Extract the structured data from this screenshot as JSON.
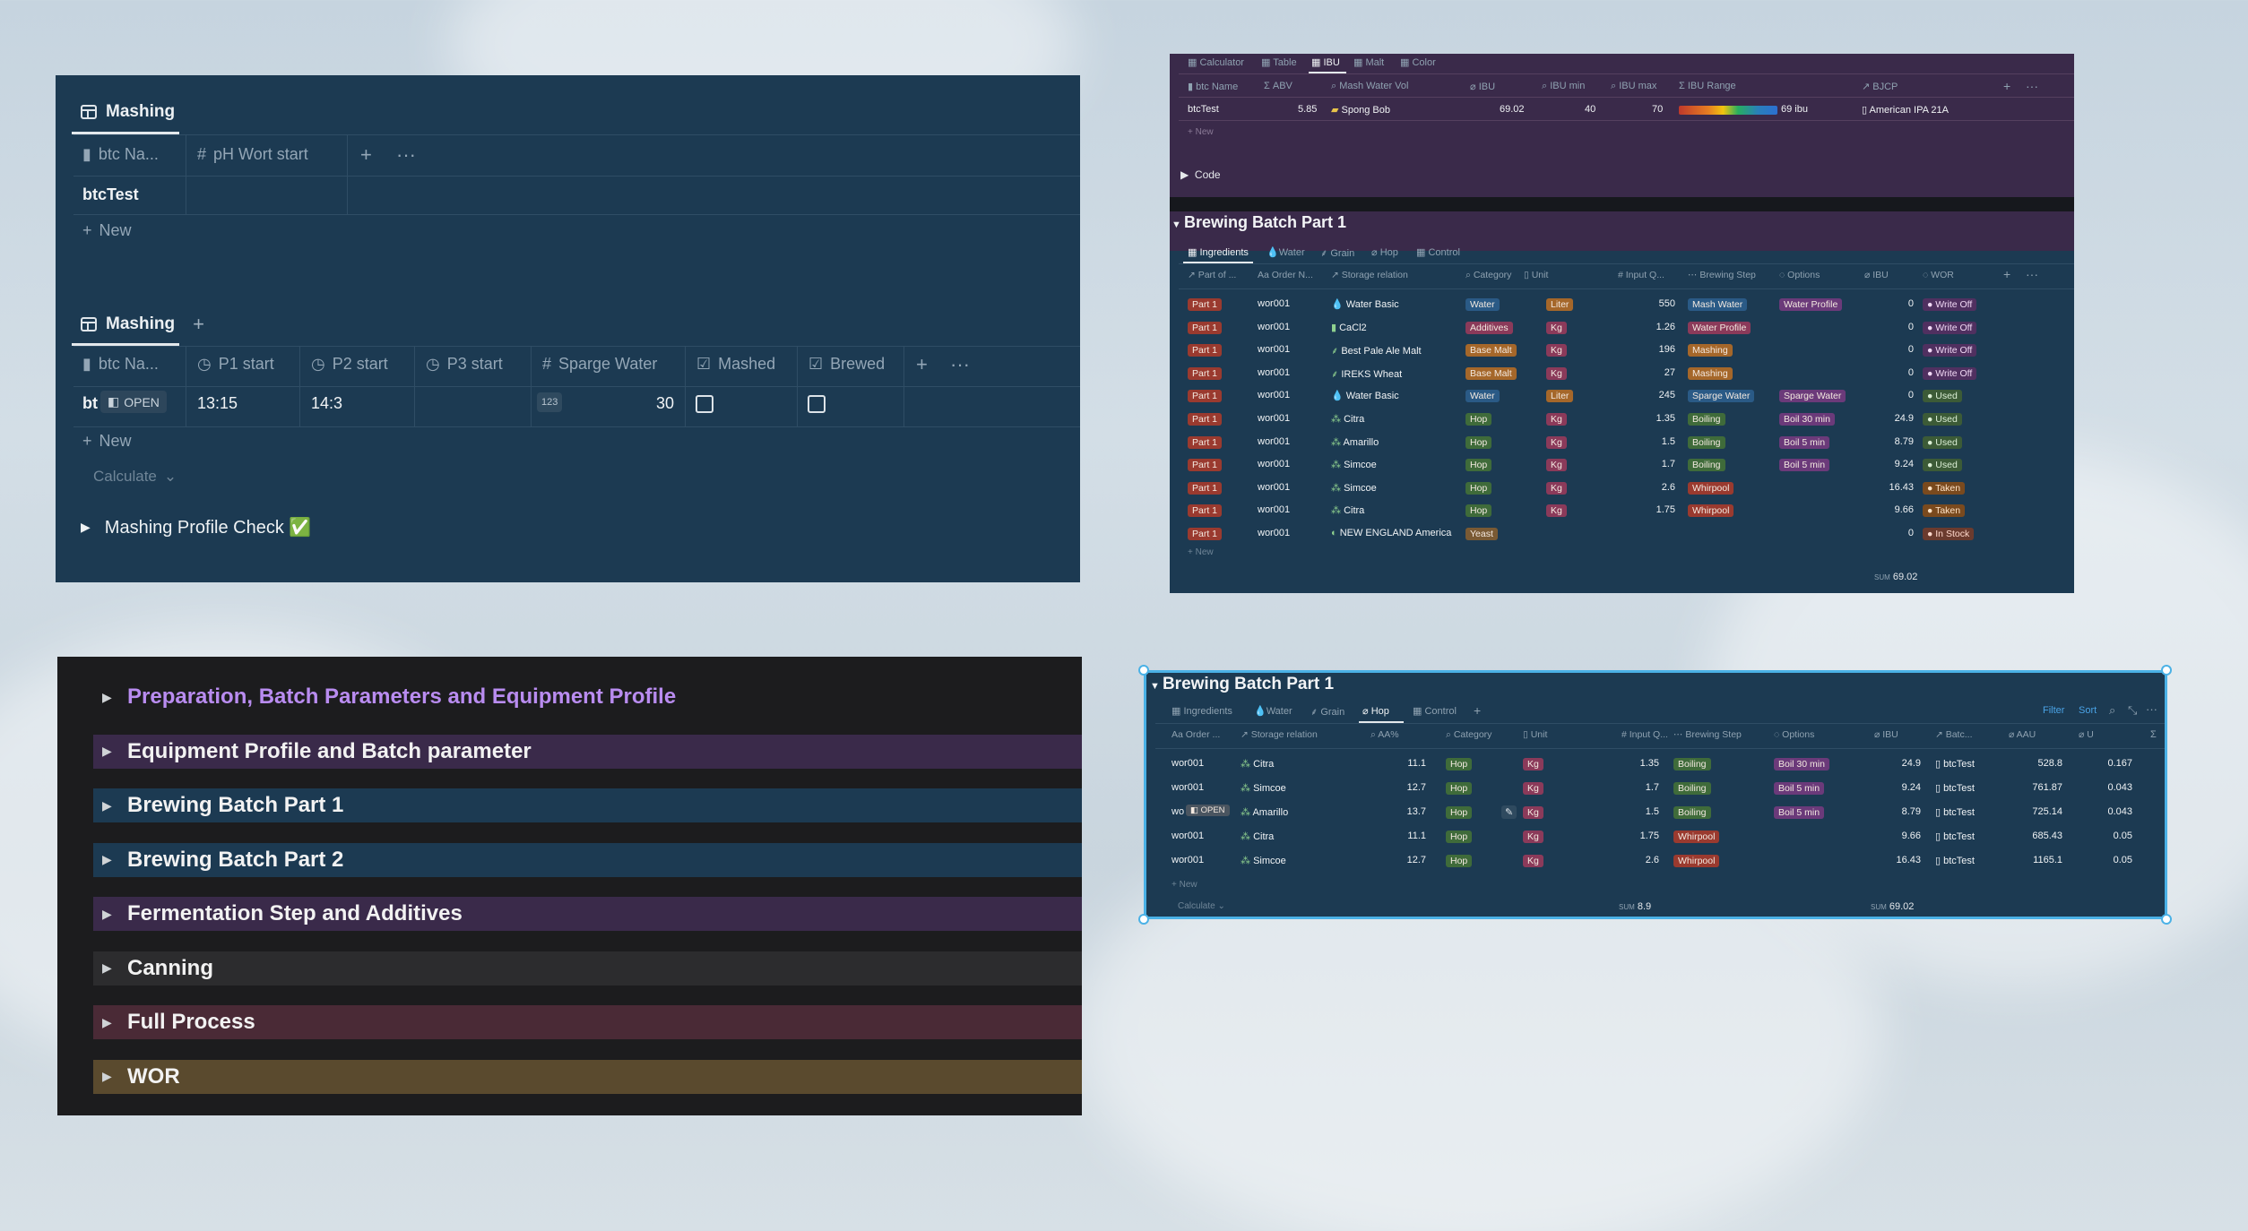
{
  "panel1": {
    "tab1": "Mashing",
    "table1_headers": [
      "btc Na...",
      "pH Wort start"
    ],
    "table1_rows": [
      [
        "btcTest",
        ""
      ]
    ],
    "new_label": "New",
    "tab2": "Mashing",
    "table2_headers": [
      "btc Na...",
      "P1 start",
      "P2 start",
      "P3 start",
      "Sparge Water",
      "Mashed",
      "Brewed"
    ],
    "row": {
      "name": "bt",
      "open": "OPEN",
      "p1": "13:15",
      "p2": "14:3",
      "p3": "",
      "sparge_badge": "123",
      "sparge": "30"
    },
    "new_label2": "New",
    "calculate": "Calculate",
    "toggle": "Mashing Profile Check ✅"
  },
  "panel2": {
    "tabs": [
      "Calculator",
      "Table",
      "IBU",
      "Malt",
      "Color"
    ],
    "active_tab": "IBU",
    "top_headers": [
      "btc Name",
      "ABV",
      "Mash Water Vol",
      "IBU",
      "IBU min",
      "IBU max",
      "IBU Range",
      "BJCP"
    ],
    "top_row": {
      "name": "btcTest",
      "abv": "5.85",
      "mash": "Spong Bob",
      "ibu": "69.02",
      "ibu_min": "40",
      "ibu_max": "70",
      "range_label": "69 ibu",
      "bjcp": "American IPA 21A"
    },
    "new_label": "New",
    "code_toggle": "Code",
    "title": "Brewing Batch Part 1",
    "sub_tabs": [
      "Ingredients",
      "Water",
      "Grain",
      "Hop",
      "Control"
    ],
    "headers": [
      "Part of ...",
      "Order N...",
      "Storage relation",
      "Category",
      "Unit",
      "Input Q...",
      "Brewing Step",
      "Options",
      "IBU",
      "WOR"
    ],
    "rows": [
      {
        "part": "Part 1",
        "order": "wor001",
        "storage": "Water Basic",
        "category": "Water",
        "unit": "Liter",
        "input": "550",
        "step": "Mash Water",
        "option": "Water Profile",
        "ibu": "0",
        "wor": "Write Off"
      },
      {
        "part": "Part 1",
        "order": "wor001",
        "storage": "CaCl2",
        "category": "Additives",
        "unit": "Kg",
        "input": "1.26",
        "step": "Water Profile",
        "option": "",
        "ibu": "0",
        "wor": "Write Off"
      },
      {
        "part": "Part 1",
        "order": "wor001",
        "storage": "Best Pale Ale Malt",
        "category": "Base Malt",
        "unit": "Kg",
        "input": "196",
        "step": "Mashing",
        "option": "",
        "ibu": "0",
        "wor": "Write Off"
      },
      {
        "part": "Part 1",
        "order": "wor001",
        "storage": "IREKS Wheat",
        "category": "Base Malt",
        "unit": "Kg",
        "input": "27",
        "step": "Mashing",
        "option": "",
        "ibu": "0",
        "wor": "Write Off"
      },
      {
        "part": "Part 1",
        "order": "wor001",
        "storage": "Water Basic",
        "category": "Water",
        "unit": "Liter",
        "input": "245",
        "step": "Sparge Water",
        "option": "Sparge Water",
        "ibu": "0",
        "wor": "Used"
      },
      {
        "part": "Part 1",
        "order": "wor001",
        "storage": "Citra",
        "category": "Hop",
        "unit": "Kg",
        "input": "1.35",
        "step": "Boiling",
        "option": "Boil 30 min",
        "ibu": "24.9",
        "wor": "Used"
      },
      {
        "part": "Part 1",
        "order": "wor001",
        "storage": "Amarillo",
        "category": "Hop",
        "unit": "Kg",
        "input": "1.5",
        "step": "Boiling",
        "option": "Boil 5 min",
        "ibu": "8.79",
        "wor": "Used"
      },
      {
        "part": "Part 1",
        "order": "wor001",
        "storage": "Simcoe",
        "category": "Hop",
        "unit": "Kg",
        "input": "1.7",
        "step": "Boiling",
        "option": "Boil 5 min",
        "ibu": "9.24",
        "wor": "Used"
      },
      {
        "part": "Part 1",
        "order": "wor001",
        "storage": "Simcoe",
        "category": "Hop",
        "unit": "Kg",
        "input": "2.6",
        "step": "Whirpool",
        "option": "",
        "ibu": "16.43",
        "wor": "Taken"
      },
      {
        "part": "Part 1",
        "order": "wor001",
        "storage": "Citra",
        "category": "Hop",
        "unit": "Kg",
        "input": "1.75",
        "step": "Whirpool",
        "option": "",
        "ibu": "9.66",
        "wor": "Taken"
      },
      {
        "part": "Part 1",
        "order": "wor001",
        "storage": "NEW ENGLAND America",
        "category": "Yeast",
        "unit": "",
        "input": "",
        "step": "",
        "option": "",
        "ibu": "0",
        "wor": "In Stock"
      }
    ],
    "new_label2": "New",
    "sum_label": "SUM",
    "sum_value": "69.02"
  },
  "panel3": {
    "items": [
      {
        "label": "Preparation, Batch Parameters and Equipment Profile",
        "color": "#b98cf0",
        "bg": "transparent"
      },
      {
        "label": "Equipment Profile and Batch parameter",
        "color": "#f2f2f2",
        "bg": "#3a2a4a"
      },
      {
        "label": "Brewing Batch Part 1",
        "color": "#f2f2f2",
        "bg": "#1c3a52"
      },
      {
        "label": "Brewing Batch Part 2",
        "color": "#f2f2f2",
        "bg": "#1c3a52"
      },
      {
        "label": "Fermentation Step and Additives",
        "color": "#f2f2f2",
        "bg": "#3a2a4a"
      },
      {
        "label": "Canning",
        "color": "#f2f2f2",
        "bg": "#2c2c2e"
      },
      {
        "label": "Full Process",
        "color": "#f2f2f2",
        "bg": "#4a2a36"
      },
      {
        "label": "WOR",
        "color": "#f2f2f2",
        "bg": "#5a4a2e"
      }
    ]
  },
  "panel4": {
    "title": "Brewing Batch Part 1",
    "tabs": [
      "Ingredients",
      "Water",
      "Grain",
      "Hop",
      "Control"
    ],
    "active_tab": "Hop",
    "actions": [
      "Filter",
      "Sort"
    ],
    "headers": [
      "Order ...",
      "Storage relation",
      "AA%",
      "Category",
      "Unit",
      "Input Q...",
      "Brewing Step",
      "Options",
      "IBU",
      "Batc...",
      "AAU",
      "U"
    ],
    "rows": [
      {
        "order": "wor001",
        "storage": "Citra",
        "aa": "11.1",
        "category": "Hop",
        "unit": "Kg",
        "input": "1.35",
        "step": "Boiling",
        "option": "Boil 30 min",
        "ibu": "24.9",
        "batch": "btcTest",
        "aau": "528.8",
        "u": "0.167"
      },
      {
        "order": "wor001",
        "storage": "Simcoe",
        "aa": "12.7",
        "category": "Hop",
        "unit": "Kg",
        "input": "1.7",
        "step": "Boiling",
        "option": "Boil 5 min",
        "ibu": "9.24",
        "batch": "btcTest",
        "aau": "761.87",
        "u": "0.043"
      },
      {
        "order": "wo",
        "open": "OPEN",
        "storage": "Amarillo",
        "aa": "13.7",
        "category": "Hop",
        "unit": "Kg",
        "input": "1.5",
        "step": "Boiling",
        "option": "Boil 5 min",
        "ibu": "8.79",
        "batch": "btcTest",
        "aau": "725.14",
        "u": "0.043"
      },
      {
        "order": "wor001",
        "storage": "Citra",
        "aa": "11.1",
        "category": "Hop",
        "unit": "Kg",
        "input": "1.75",
        "step": "Whirpool",
        "option": "",
        "ibu": "9.66",
        "batch": "btcTest",
        "aau": "685.43",
        "u": "0.05"
      },
      {
        "order": "wor001",
        "storage": "Simcoe",
        "aa": "12.7",
        "category": "Hop",
        "unit": "Kg",
        "input": "2.6",
        "step": "Whirpool",
        "option": "",
        "ibu": "16.43",
        "batch": "btcTest",
        "aau": "1165.1",
        "u": "0.05"
      }
    ],
    "new_label": "New",
    "calculate": "Calculate",
    "sum_label1": "SUM",
    "sum_value1": "8.9",
    "sum_label2": "SUM",
    "sum_value2": "69.02"
  }
}
